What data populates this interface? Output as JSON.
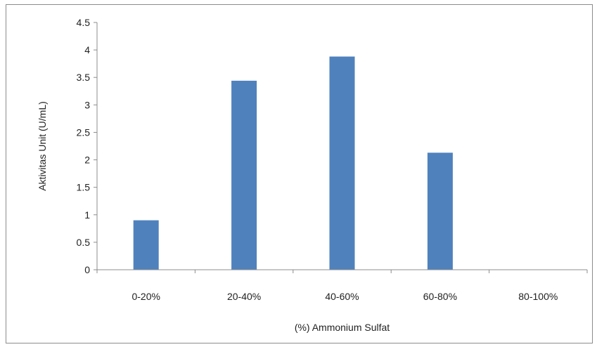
{
  "chart_data": {
    "type": "bar",
    "title": "",
    "xlabel": "(%) Ammonium Sulfat",
    "ylabel": "Aktivitas Unit (U/mL)",
    "categories": [
      "0-20%",
      "20-40%",
      "40-60%",
      "60-80%",
      "80-100%"
    ],
    "values": [
      0.9,
      3.44,
      3.88,
      2.13,
      0
    ],
    "ylim": [
      0,
      4.5
    ],
    "yticks": [
      0,
      0.5,
      1,
      1.5,
      2,
      2.5,
      3,
      3.5,
      4,
      4.5
    ],
    "ytick_labels": [
      "0",
      "0.5",
      "1",
      "1.5",
      "2",
      "2.5",
      "3",
      "3.5",
      "4",
      "4.5"
    ],
    "grid": false,
    "legend": "none",
    "bar_color": "#4f81bd"
  }
}
